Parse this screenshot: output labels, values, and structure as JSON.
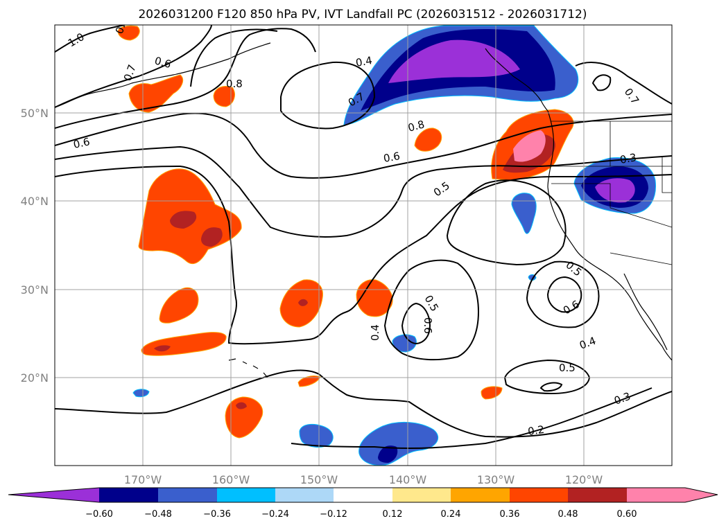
{
  "map": {
    "title": "2026031200 F120 850 hPa PV, IVT Landfall PC (2026031512 - 2026031712)",
    "lat_labels": [
      "50°N",
      "40°N",
      "30°N",
      "20°N"
    ],
    "lon_labels": [
      "170°W",
      "160°W",
      "150°W",
      "140°W",
      "130°W",
      "120°W"
    ],
    "extent": {
      "lon_min": -180,
      "lon_max": -110,
      "lat_min": 10,
      "lat_max": 60
    },
    "contour_labels": [
      "1.0",
      "0.8",
      "0.7",
      "0.6",
      "0.8",
      "0.6",
      "0.4",
      "0.7",
      "0.8",
      "0.7",
      "0.6",
      "0.5",
      "0.3",
      "0.5",
      "0.6",
      "0.5",
      "0.6",
      "0.4",
      "0.4",
      "0.5",
      "0.3",
      "0.2"
    ]
  },
  "colorbar": {
    "ticks": [
      "−0.60",
      "−0.48",
      "−0.36",
      "−0.24",
      "−0.12",
      "0.12",
      "0.24",
      "0.36",
      "0.48",
      "0.60"
    ],
    "colors": [
      "#9b30d8",
      "#00008b",
      "#3a5fcd",
      "#00bfff",
      "#add8f7",
      "#ffffff",
      "#ffe88c",
      "#ffa500",
      "#ff4500",
      "#b22222",
      "#ff82ab",
      "#ff82ab"
    ]
  }
}
